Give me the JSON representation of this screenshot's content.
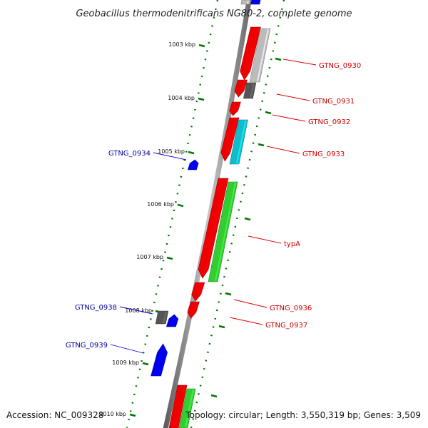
{
  "title": "Geobacillus thermodenitrificans NG80-2, complete genome",
  "accession": "Accession: NC_009328",
  "summary": "Topology: circular; Length: 3,550,319 bp; Genes: 3,509",
  "ruler_ticks": [
    {
      "kbp": 1003,
      "label": "1003 kbp"
    },
    {
      "kbp": 1004,
      "label": "1004 kbp"
    },
    {
      "kbp": 1005,
      "label": "1005 kbp"
    },
    {
      "kbp": 1006,
      "label": "1006 kbp"
    },
    {
      "kbp": 1007,
      "label": "1007 kbp"
    },
    {
      "kbp": 1008,
      "label": "1008 kbp"
    },
    {
      "kbp": 1009,
      "label": "1009 kbp"
    },
    {
      "kbp": 1010,
      "label": "1010 kbp"
    }
  ],
  "genes": [
    {
      "name": "GTNG_0930",
      "side": "right",
      "label_color": "#cc0000"
    },
    {
      "name": "GTNG_0931",
      "side": "right",
      "label_color": "#cc0000"
    },
    {
      "name": "GTNG_0932",
      "side": "right",
      "label_color": "#cc0000"
    },
    {
      "name": "GTNG_0933",
      "side": "right",
      "label_color": "#cc0000"
    },
    {
      "name": "GTNG_0934",
      "side": "left",
      "label_color": "#000099"
    },
    {
      "name": "typA",
      "side": "right",
      "label_color": "#cc0000"
    },
    {
      "name": "GTNG_0936",
      "side": "right",
      "label_color": "#cc0000"
    },
    {
      "name": "GTNG_0937",
      "side": "right",
      "label_color": "#cc0000"
    },
    {
      "name": "GTNG_0938",
      "side": "left",
      "label_color": "#000099"
    },
    {
      "name": "GTNG_0939",
      "side": "left",
      "label_color": "#000099"
    }
  ],
  "colors": {
    "forward_cds": "#ee0000",
    "reverse_cds": "#0000ee",
    "rna": "#33cc33",
    "pseudo": "#555555",
    "light": "#bbbbbb",
    "cyan": "#11bbcc",
    "ticks": "#007700"
  }
}
